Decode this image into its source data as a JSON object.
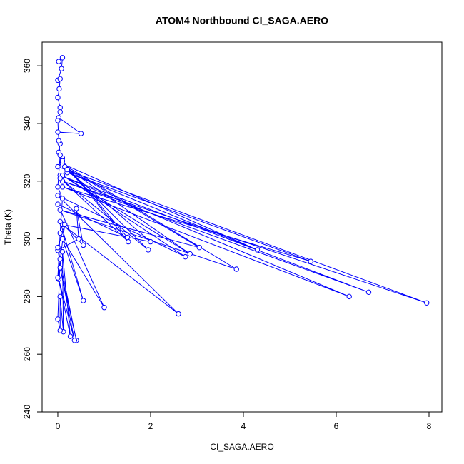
{
  "chart_data": {
    "type": "line",
    "title": "ATOM4 Northbound CI_SAGA.AERO",
    "x_label": "CI_SAGA.AERO",
    "y_label": "Theta (K)",
    "color": "#0000ff",
    "markers": true,
    "xlim": [
      -0.338,
      8.277
    ],
    "ylim": [
      240,
      368.2
    ],
    "xticks": [
      0,
      2,
      4,
      6,
      8
    ],
    "yticks": [
      240,
      260,
      280,
      300,
      320,
      340,
      360
    ],
    "x": [
      0.02,
      0.1,
      0.08,
      0.0,
      0.05,
      0.03,
      0.0,
      0.05,
      0.02,
      0.5,
      0.0,
      0.05,
      0.02,
      0.1,
      0.0,
      7.95,
      0.1,
      6.7,
      0.05,
      6.28,
      0.1,
      5.45,
      0.2,
      4.3,
      0.1,
      3.85,
      0.05,
      3.05,
      0.15,
      2.85,
      0.1,
      2.75,
      0.0,
      2.6,
      0.1,
      2.0,
      0.2,
      1.95,
      0.05,
      1.52,
      0.1,
      1.5,
      0.0,
      1.0,
      0.1,
      0.55,
      0.05,
      0.55,
      0.4,
      0.45,
      0.0,
      0.4,
      0.05,
      0.36,
      0.02,
      0.27,
      0.1,
      0.12,
      0.05,
      0.05,
      0.0,
      0.05,
      0.0,
      0.15,
      0.0,
      0.05,
      0.1,
      0.0,
      0.05,
      0.02,
      0.0,
      0.05
    ],
    "values": [
      361.5,
      362.8,
      359,
      355,
      355.5,
      352,
      349,
      345.5,
      342,
      336.5,
      337,
      333,
      330,
      328,
      325,
      277.8,
      320,
      281.5,
      322,
      280,
      318,
      292.2,
      323,
      296.2,
      326,
      289.5,
      310,
      297,
      325,
      294.8,
      322,
      293.8,
      315,
      274,
      305,
      299,
      324,
      296.2,
      321,
      299,
      327,
      300.5,
      312,
      276.2,
      300,
      278.6,
      306,
      297.8,
      310.5,
      300,
      296,
      264.8,
      290,
      264.8,
      286,
      266.2,
      295.5,
      267.8,
      280,
      268.2,
      272.2,
      293,
      297,
      305,
      286.5,
      302,
      314,
      318,
      329,
      334,
      341,
      344
    ]
  }
}
